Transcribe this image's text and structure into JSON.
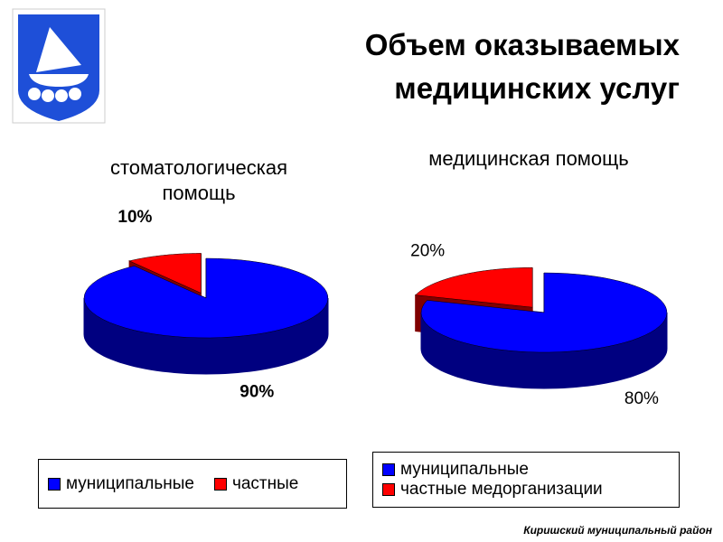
{
  "title": "Объем оказываемых медицинских услуг",
  "footer": "Киришский муниципальный район",
  "chart_data": [
    {
      "type": "pie",
      "title": "стоматологическая помощь",
      "categories": [
        "муниципальные",
        "частные"
      ],
      "values": [
        90,
        10
      ],
      "value_labels": [
        "90%",
        "10%"
      ],
      "colors": [
        "#0000ff",
        "#ff0000"
      ],
      "legend": "bottom"
    },
    {
      "type": "pie",
      "title": "медицинская помощь",
      "categories": [
        "муниципальные",
        "частные медорганизации"
      ],
      "values": [
        80,
        20
      ],
      "value_labels": [
        "80%",
        "20%"
      ],
      "colors": [
        "#0000ff",
        "#ff0000"
      ],
      "legend": "bottom"
    }
  ]
}
